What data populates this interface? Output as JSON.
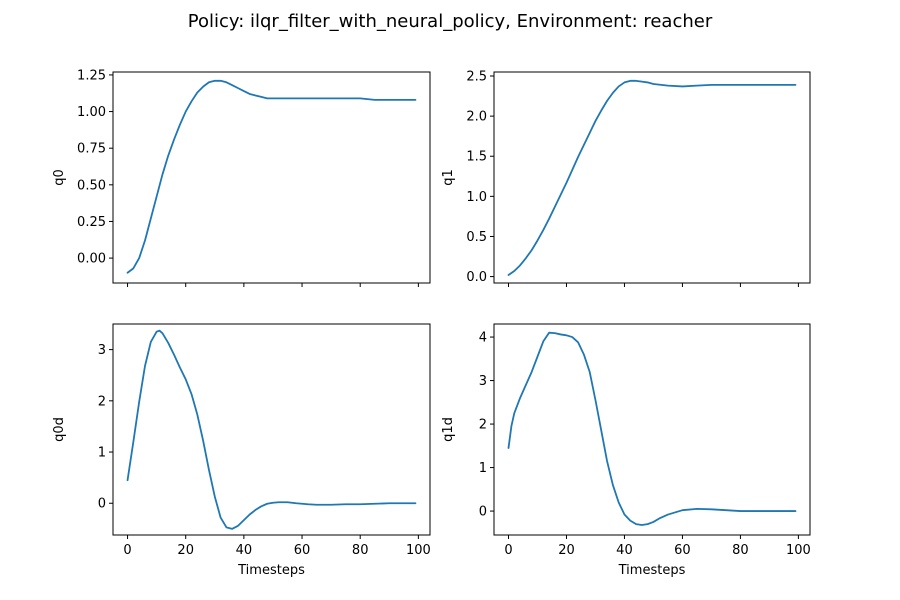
{
  "figure": {
    "suptitle": "Policy: ilqr_filter_with_neural_policy, Environment: reacher"
  },
  "colors": {
    "line": "#1f77b4",
    "axes": "#000000",
    "background": "#ffffff"
  },
  "chart_data": [
    {
      "type": "line",
      "ylabel": "q0",
      "xlabel": "",
      "xlim": [
        -5,
        104
      ],
      "ylim": [
        -0.17,
        1.27
      ],
      "xticks": [
        0,
        20,
        40,
        60,
        80,
        100
      ],
      "xticklabels_visible": false,
      "yticks": [
        0.0,
        0.25,
        0.5,
        0.75,
        1.0,
        1.25
      ],
      "yticklabels": [
        "0.00",
        "0.25",
        "0.50",
        "0.75",
        "1.00",
        "1.25"
      ],
      "grid": false,
      "series": [
        {
          "x": [
            0,
            2,
            4,
            6,
            8,
            10,
            12,
            14,
            16,
            18,
            20,
            22,
            24,
            26,
            28,
            30,
            32,
            34,
            36,
            38,
            40,
            42,
            44,
            46,
            48,
            50,
            55,
            60,
            65,
            70,
            75,
            80,
            85,
            90,
            95,
            99
          ],
          "y": [
            -0.1,
            -0.07,
            0.0,
            0.12,
            0.27,
            0.42,
            0.57,
            0.7,
            0.81,
            0.91,
            1.0,
            1.07,
            1.13,
            1.17,
            1.2,
            1.21,
            1.21,
            1.2,
            1.18,
            1.16,
            1.14,
            1.12,
            1.11,
            1.1,
            1.09,
            1.09,
            1.09,
            1.09,
            1.09,
            1.09,
            1.09,
            1.09,
            1.08,
            1.08,
            1.08,
            1.08
          ]
        }
      ]
    },
    {
      "type": "line",
      "ylabel": "q1",
      "xlabel": "",
      "xlim": [
        -5,
        104
      ],
      "ylim": [
        -0.08,
        2.55
      ],
      "xticks": [
        0,
        20,
        40,
        60,
        80,
        100
      ],
      "xticklabels_visible": false,
      "yticks": [
        0.0,
        0.5,
        1.0,
        1.5,
        2.0,
        2.5
      ],
      "yticklabels": [
        "0.0",
        "0.5",
        "1.0",
        "1.5",
        "2.0",
        "2.5"
      ],
      "grid": false,
      "series": [
        {
          "x": [
            0,
            2,
            4,
            6,
            8,
            10,
            12,
            14,
            16,
            18,
            20,
            22,
            24,
            26,
            28,
            30,
            32,
            34,
            36,
            38,
            40,
            42,
            44,
            46,
            48,
            50,
            55,
            60,
            65,
            70,
            75,
            80,
            85,
            90,
            95,
            99
          ],
          "y": [
            0.02,
            0.07,
            0.14,
            0.23,
            0.33,
            0.45,
            0.58,
            0.72,
            0.87,
            1.02,
            1.17,
            1.33,
            1.49,
            1.64,
            1.79,
            1.94,
            2.07,
            2.19,
            2.29,
            2.37,
            2.42,
            2.44,
            2.44,
            2.43,
            2.42,
            2.4,
            2.38,
            2.37,
            2.38,
            2.39,
            2.39,
            2.39,
            2.39,
            2.39,
            2.39,
            2.39
          ]
        }
      ]
    },
    {
      "type": "line",
      "ylabel": "q0d",
      "xlabel": "Timesteps",
      "xlim": [
        -5,
        104
      ],
      "ylim": [
        -0.62,
        3.5
      ],
      "xticks": [
        0,
        20,
        40,
        60,
        80,
        100
      ],
      "xticklabels": [
        "0",
        "20",
        "40",
        "60",
        "80",
        "100"
      ],
      "yticks": [
        0,
        1,
        2,
        3
      ],
      "yticklabels": [
        "0",
        "1",
        "2",
        "3"
      ],
      "grid": false,
      "series": [
        {
          "x": [
            0,
            2,
            4,
            6,
            8,
            10,
            11,
            12,
            14,
            16,
            18,
            20,
            22,
            24,
            26,
            28,
            30,
            32,
            34,
            36,
            38,
            40,
            42,
            44,
            46,
            48,
            50,
            52,
            55,
            58,
            60,
            62,
            65,
            70,
            75,
            80,
            85,
            90,
            95,
            99
          ],
          "y": [
            0.45,
            1.2,
            1.98,
            2.68,
            3.15,
            3.35,
            3.37,
            3.32,
            3.13,
            2.9,
            2.65,
            2.42,
            2.13,
            1.73,
            1.22,
            0.65,
            0.13,
            -0.28,
            -0.47,
            -0.5,
            -0.44,
            -0.33,
            -0.22,
            -0.13,
            -0.06,
            -0.01,
            0.01,
            0.02,
            0.02,
            0.0,
            -0.01,
            -0.02,
            -0.03,
            -0.03,
            -0.02,
            -0.02,
            -0.01,
            0.0,
            0.0,
            0.0
          ]
        }
      ]
    },
    {
      "type": "line",
      "ylabel": "q1d",
      "xlabel": "Timesteps",
      "xlim": [
        -5,
        104
      ],
      "ylim": [
        -0.55,
        4.3
      ],
      "xticks": [
        0,
        20,
        40,
        60,
        80,
        100
      ],
      "xticklabels": [
        "0",
        "20",
        "40",
        "60",
        "80",
        "100"
      ],
      "yticks": [
        0,
        1,
        2,
        3,
        4
      ],
      "yticklabels": [
        "0",
        "1",
        "2",
        "3",
        "4"
      ],
      "grid": false,
      "series": [
        {
          "x": [
            0,
            1,
            2,
            4,
            6,
            8,
            10,
            12,
            14,
            16,
            18,
            20,
            22,
            24,
            26,
            28,
            30,
            32,
            34,
            36,
            38,
            40,
            42,
            44,
            46,
            48,
            50,
            52,
            55,
            58,
            60,
            65,
            70,
            75,
            80,
            85,
            90,
            95,
            99
          ],
          "y": [
            1.45,
            1.95,
            2.25,
            2.6,
            2.9,
            3.2,
            3.55,
            3.9,
            4.1,
            4.09,
            4.06,
            4.04,
            4.0,
            3.88,
            3.6,
            3.2,
            2.55,
            1.85,
            1.15,
            0.6,
            0.2,
            -0.08,
            -0.22,
            -0.3,
            -0.32,
            -0.3,
            -0.25,
            -0.17,
            -0.08,
            -0.02,
            0.02,
            0.05,
            0.04,
            0.02,
            0.0,
            0.0,
            0.0,
            0.0,
            0.0
          ]
        }
      ]
    }
  ]
}
